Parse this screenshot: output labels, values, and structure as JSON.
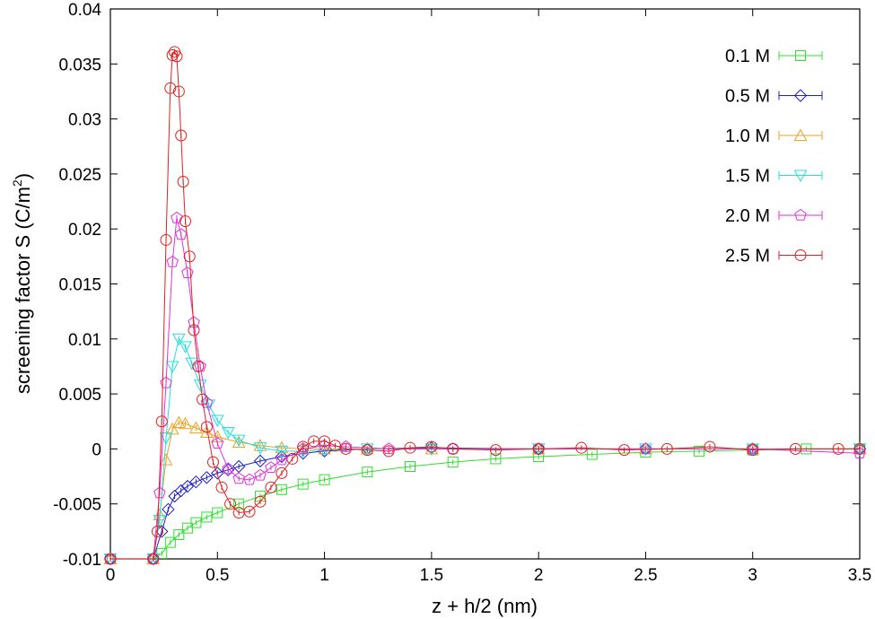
{
  "chart_data": {
    "type": "line",
    "title": "",
    "xlabel": "z + h/2 (nm)",
    "ylabel_main": "screening factor S (C/m",
    "ylabel_sup": "2",
    "ylabel_end": ")",
    "xlim": [
      0,
      3.5
    ],
    "ylim": [
      -0.01,
      0.04
    ],
    "xticks": [
      0,
      0.5,
      1,
      1.5,
      2,
      2.5,
      3,
      3.5
    ],
    "xtick_labels": [
      "0",
      "0.5",
      "1",
      "1.5",
      "2",
      "2.5",
      "3",
      "3.5"
    ],
    "yticks": [
      -0.01,
      -0.005,
      0,
      0.005,
      0.01,
      0.015,
      0.02,
      0.025,
      0.03,
      0.035,
      0.04
    ],
    "ytick_labels": [
      "-0.01",
      "-0.005",
      "0",
      "0.005",
      "0.01",
      "0.015",
      "0.02",
      "0.025",
      "0.03",
      "0.035",
      "0.04"
    ],
    "legend_position": "top-right",
    "series": [
      {
        "name": "0.1 M",
        "color": "#2ee02e",
        "marker": "square",
        "x": [
          0,
          0.2,
          0.24,
          0.28,
          0.32,
          0.36,
          0.4,
          0.45,
          0.5,
          0.6,
          0.7,
          0.8,
          0.9,
          1.0,
          1.2,
          1.4,
          1.6,
          1.8,
          2.0,
          2.25,
          2.5,
          2.75,
          3.0,
          3.25,
          3.5
        ],
        "y": [
          -0.01,
          -0.01,
          -0.0095,
          -0.0085,
          -0.0078,
          -0.0072,
          -0.0067,
          -0.0062,
          -0.0058,
          -0.005,
          -0.0043,
          -0.0037,
          -0.0032,
          -0.0028,
          -0.0021,
          -0.0016,
          -0.0012,
          -0.0009,
          -0.0007,
          -0.0005,
          -0.0003,
          -0.0002,
          -0.0001,
          0,
          0
        ]
      },
      {
        "name": "0.5 M",
        "color": "#2020c8",
        "marker": "diamond",
        "x": [
          0,
          0.2,
          0.24,
          0.27,
          0.3,
          0.33,
          0.36,
          0.4,
          0.45,
          0.5,
          0.55,
          0.6,
          0.7,
          0.8,
          0.9,
          1.0,
          1.2,
          1.5,
          2.0,
          2.5,
          3.0,
          3.5
        ],
        "y": [
          -0.01,
          -0.01,
          -0.0075,
          -0.0055,
          -0.0043,
          -0.0038,
          -0.0034,
          -0.003,
          -0.0026,
          -0.0022,
          -0.0019,
          -0.0016,
          -0.0011,
          -0.0007,
          -0.0004,
          -0.0002,
          0,
          0.0001,
          0,
          0,
          0,
          0
        ]
      },
      {
        "name": "1.0 M",
        "color": "#f0a020",
        "marker": "triangle-up",
        "x": [
          0,
          0.2,
          0.23,
          0.26,
          0.29,
          0.32,
          0.35,
          0.4,
          0.45,
          0.5,
          0.6,
          0.7,
          0.8,
          0.9,
          1.0,
          1.2,
          1.5,
          2.0,
          2.5,
          3.0,
          3.5
        ],
        "y": [
          -0.01,
          -0.01,
          -0.006,
          -0.001,
          0.0018,
          0.0024,
          0.0023,
          0.0019,
          0.0015,
          0.0011,
          0.0006,
          0.0003,
          0.0001,
          0,
          0,
          0,
          0,
          0,
          0,
          0,
          0
        ]
      },
      {
        "name": "1.5 M",
        "color": "#20e0e0",
        "marker": "triangle-down",
        "x": [
          0,
          0.2,
          0.23,
          0.26,
          0.29,
          0.32,
          0.35,
          0.38,
          0.42,
          0.46,
          0.5,
          0.55,
          0.6,
          0.7,
          0.8,
          0.9,
          1.0,
          1.2,
          1.5,
          2.0,
          2.5,
          3.0,
          3.5
        ],
        "y": [
          -0.01,
          -0.01,
          -0.0065,
          0.001,
          0.0075,
          0.01,
          0.0093,
          0.0078,
          0.0058,
          0.004,
          0.0026,
          0.0015,
          0.0008,
          0.0001,
          -0.0002,
          -0.0002,
          -0.0001,
          0,
          0,
          0,
          0,
          0,
          0
        ]
      },
      {
        "name": "2.0 M",
        "color": "#e030e0",
        "marker": "pentagon",
        "x": [
          0,
          0.2,
          0.23,
          0.26,
          0.29,
          0.31,
          0.33,
          0.36,
          0.39,
          0.42,
          0.45,
          0.5,
          0.55,
          0.6,
          0.65,
          0.7,
          0.75,
          0.8,
          0.9,
          1.0,
          1.1,
          1.3,
          1.6,
          2.0,
          2.5,
          3.0,
          3.5
        ],
        "y": [
          -0.01,
          -0.01,
          -0.004,
          0.006,
          0.017,
          0.021,
          0.0195,
          0.016,
          0.0115,
          0.0075,
          0.0042,
          0.0005,
          -0.0018,
          -0.0027,
          -0.0028,
          -0.0024,
          -0.0017,
          -0.001,
          0,
          0.0003,
          0.0002,
          0,
          0,
          0,
          0,
          0,
          -0.0004
        ]
      },
      {
        "name": "2.5 M",
        "color": "#e02020",
        "marker": "circle",
        "x": [
          0,
          0.2,
          0.22,
          0.24,
          0.26,
          0.28,
          0.29,
          0.3,
          0.31,
          0.32,
          0.33,
          0.34,
          0.35,
          0.37,
          0.39,
          0.41,
          0.43,
          0.45,
          0.48,
          0.52,
          0.56,
          0.6,
          0.65,
          0.7,
          0.75,
          0.8,
          0.85,
          0.9,
          0.95,
          1.0,
          1.05,
          1.1,
          1.2,
          1.3,
          1.4,
          1.5,
          1.6,
          1.8,
          2.0,
          2.2,
          2.4,
          2.6,
          2.8,
          3.0,
          3.2,
          3.4,
          3.5
        ],
        "y": [
          -0.01,
          -0.01,
          -0.0075,
          0.0025,
          0.019,
          0.0328,
          0.0358,
          0.0361,
          0.0357,
          0.0325,
          0.0285,
          0.0243,
          0.0207,
          0.0175,
          0.0108,
          0.0075,
          0.0045,
          0.002,
          -0.0012,
          -0.0035,
          -0.005,
          -0.0058,
          -0.0057,
          -0.0048,
          -0.0035,
          -0.0022,
          -0.0009,
          0.0002,
          0.0007,
          0.0007,
          0.0003,
          0,
          -0.0001,
          -0.0002,
          0.0001,
          0.0002,
          0,
          -0.0001,
          0,
          0.0001,
          -0.0001,
          0,
          0.0002,
          -0.0001,
          0,
          0,
          0
        ]
      }
    ]
  }
}
